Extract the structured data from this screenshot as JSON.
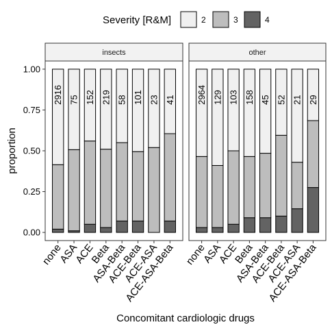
{
  "chart_data": {
    "type": "bar",
    "stacked": true,
    "facet_layout": "two panels side by side",
    "legend_position": "top",
    "grid": false,
    "legend": {
      "title": "Severity [R&M]",
      "entries": [
        {
          "label": "2",
          "color": "#f0f0f0"
        },
        {
          "label": "3",
          "color": "#bdbdbd"
        },
        {
          "label": "4",
          "color": "#636363"
        }
      ]
    },
    "xlabel": "Concomitant cardiologic drugs",
    "ylabel": "proportion",
    "ylim": [
      -0.05,
      1.05
    ],
    "yticks": [
      0,
      0.25,
      0.5,
      0.75,
      1
    ],
    "ytick_labels": [
      "0.00",
      "0.25",
      "0.50",
      "0.75",
      "1.00"
    ],
    "categories": [
      "none",
      "ASA",
      "ACE",
      "Beta",
      "ASA-Beta",
      "ACE-Beta",
      "ACE-ASA",
      "ACE-ASA-Beta"
    ],
    "panels": [
      {
        "label": "insects",
        "counts": [
          "2916",
          "75",
          "152",
          "219",
          "58",
          "101",
          "23",
          "41"
        ],
        "series": [
          {
            "name": "4",
            "values": [
              0.02,
              0.01,
              0.05,
              0.03,
              0.07,
              0.07,
              0.0,
              0.07
            ]
          },
          {
            "name": "3",
            "values": [
              0.395,
              0.497,
              0.51,
              0.48,
              0.48,
              0.425,
              0.52,
              0.535
            ]
          },
          {
            "name": "2",
            "values": [
              0.585,
              0.493,
              0.44,
              0.49,
              0.45,
              0.505,
              0.48,
              0.395
            ]
          }
        ]
      },
      {
        "label": "other",
        "counts": [
          "2964",
          "129",
          "103",
          "158",
          "45",
          "52",
          "21",
          "29"
        ],
        "series": [
          {
            "name": "4",
            "values": [
              0.03,
              0.03,
              0.05,
              0.09,
              0.09,
              0.1,
              0.145,
              0.275
            ]
          },
          {
            "name": "3",
            "values": [
              0.435,
              0.38,
              0.45,
              0.375,
              0.395,
              0.495,
              0.285,
              0.41
            ]
          },
          {
            "name": "2",
            "values": [
              0.535,
              0.59,
              0.5,
              0.535,
              0.515,
              0.405,
              0.57,
              0.315
            ]
          }
        ]
      }
    ]
  }
}
